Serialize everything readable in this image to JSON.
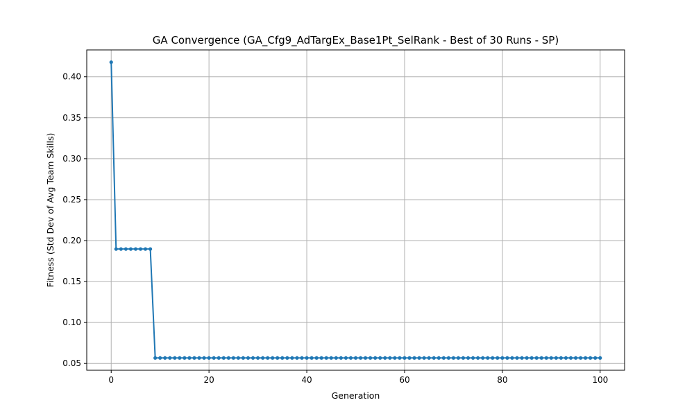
{
  "chart_data": {
    "type": "line",
    "title": "GA Convergence (GA_Cfg9_AdTargEx_Base1Pt_SelRank - Best of 30 Runs - SP)",
    "xlabel": "Generation",
    "ylabel": "Fitness (Std Dev of Avg Team Skills)",
    "xlim": [
      -5,
      105
    ],
    "ylim": [
      0.0417,
      0.4328
    ],
    "xticks": [
      0,
      20,
      40,
      60,
      80,
      100
    ],
    "yticks": [
      0.05,
      0.1,
      0.15,
      0.2,
      0.25,
      0.3,
      0.35,
      0.4
    ],
    "xtick_labels": [
      "0",
      "20",
      "40",
      "60",
      "80",
      "100"
    ],
    "ytick_labels": [
      "0.05",
      "0.10",
      "0.15",
      "0.20",
      "0.25",
      "0.30",
      "0.35",
      "0.40"
    ],
    "grid": true,
    "legend": "none",
    "series": [
      {
        "color": "#1f77b4",
        "marker": "circle",
        "x": [
          0,
          1,
          2,
          3,
          4,
          5,
          6,
          7,
          8,
          9,
          10,
          11,
          12,
          13,
          14,
          15,
          16,
          17,
          18,
          19,
          20,
          21,
          22,
          23,
          24,
          25,
          26,
          27,
          28,
          29,
          30,
          31,
          32,
          33,
          34,
          35,
          36,
          37,
          38,
          39,
          40,
          41,
          42,
          43,
          44,
          45,
          46,
          47,
          48,
          49,
          50,
          51,
          52,
          53,
          54,
          55,
          56,
          57,
          58,
          59,
          60,
          61,
          62,
          63,
          64,
          65,
          66,
          67,
          68,
          69,
          70,
          71,
          72,
          73,
          74,
          75,
          76,
          77,
          78,
          79,
          80,
          81,
          82,
          83,
          84,
          85,
          86,
          87,
          88,
          89,
          90,
          91,
          92,
          93,
          94,
          95,
          96,
          97,
          98,
          99,
          100
        ],
        "y": [
          0.4178,
          0.1897,
          0.1897,
          0.1897,
          0.1897,
          0.1897,
          0.1897,
          0.1897,
          0.1897,
          0.0567,
          0.0567,
          0.0567,
          0.0567,
          0.0567,
          0.0567,
          0.0567,
          0.0567,
          0.0567,
          0.0567,
          0.0567,
          0.0567,
          0.0567,
          0.0567,
          0.0567,
          0.0567,
          0.0567,
          0.0567,
          0.0567,
          0.0567,
          0.0567,
          0.0567,
          0.0567,
          0.0567,
          0.0567,
          0.0567,
          0.0567,
          0.0567,
          0.0567,
          0.0567,
          0.0567,
          0.0567,
          0.0567,
          0.0567,
          0.0567,
          0.0567,
          0.0567,
          0.0567,
          0.0567,
          0.0567,
          0.0567,
          0.0567,
          0.0567,
          0.0567,
          0.0567,
          0.0567,
          0.0567,
          0.0567,
          0.0567,
          0.0567,
          0.0567,
          0.0567,
          0.0567,
          0.0567,
          0.0567,
          0.0567,
          0.0567,
          0.0567,
          0.0567,
          0.0567,
          0.0567,
          0.0567,
          0.0567,
          0.0567,
          0.0567,
          0.0567,
          0.0567,
          0.0567,
          0.0567,
          0.0567,
          0.0567,
          0.0567,
          0.0567,
          0.0567,
          0.0567,
          0.0567,
          0.0567,
          0.0567,
          0.0567,
          0.0567,
          0.0567,
          0.0567,
          0.0567,
          0.0567,
          0.0567,
          0.0567,
          0.0567,
          0.0567,
          0.0567,
          0.0567,
          0.0567,
          0.0567
        ]
      }
    ]
  }
}
